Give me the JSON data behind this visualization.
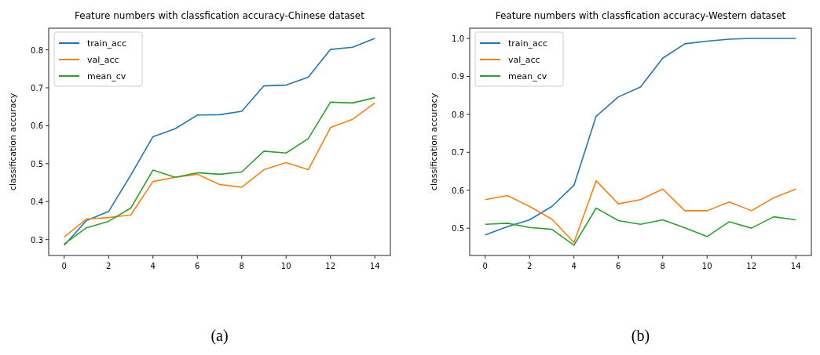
{
  "chart_data": [
    {
      "type": "line",
      "title": "Feature numbers with classfication accuracy-Chinese dataset",
      "ylabel": "classification accuracy",
      "annotations": [
        "(a)"
      ],
      "x": [
        0,
        1,
        2,
        3,
        4,
        5,
        6,
        7,
        8,
        9,
        10,
        11,
        12,
        13,
        14
      ],
      "xlim": [
        -0.7,
        14.7
      ],
      "xticks": [
        0,
        2,
        4,
        6,
        8,
        10,
        12,
        14
      ],
      "ylim": [
        0.258,
        0.857
      ],
      "yticks": [
        {
          "value": 0.3,
          "label": "0.3"
        },
        {
          "value": 0.4,
          "label": "0.4"
        },
        {
          "value": 0.5,
          "label": "0.5"
        },
        {
          "value": 0.6,
          "label": "0.6"
        },
        {
          "value": 0.7,
          "label": "0.7"
        },
        {
          "value": 0.8,
          "label": "0.8"
        }
      ],
      "legend": "top left",
      "grid": false,
      "series": [
        {
          "name": "train_acc",
          "color": "#1f77b4",
          "values": [
            0.285,
            0.35,
            0.374,
            0.47,
            0.571,
            0.592,
            0.628,
            0.629,
            0.638,
            0.705,
            0.707,
            0.728,
            0.801,
            0.807,
            0.83
          ]
        },
        {
          "name": "val_acc",
          "color": "#ff7f0e",
          "values": [
            0.307,
            0.354,
            0.358,
            0.365,
            0.453,
            0.464,
            0.472,
            0.445,
            0.438,
            0.484,
            0.503,
            0.484,
            0.595,
            0.617,
            0.66
          ]
        },
        {
          "name": "mean_cv",
          "color": "#2ca02c",
          "values": [
            0.288,
            0.331,
            0.348,
            0.383,
            0.483,
            0.464,
            0.476,
            0.472,
            0.478,
            0.533,
            0.528,
            0.566,
            0.662,
            0.66,
            0.674
          ]
        }
      ]
    },
    {
      "type": "line",
      "title": "Feature numbers with classfication accuracy-Western dataset",
      "ylabel": "classification accuracy",
      "annotations": [
        "(b)"
      ],
      "x": [
        0,
        1,
        2,
        3,
        4,
        5,
        6,
        7,
        8,
        9,
        10,
        11,
        12,
        13,
        14
      ],
      "xlim": [
        -0.7,
        14.7
      ],
      "xticks": [
        0,
        2,
        4,
        6,
        8,
        10,
        12,
        14
      ],
      "ylim": [
        0.428,
        1.027
      ],
      "yticks": [
        {
          "value": 0.5,
          "label": "0.5"
        },
        {
          "value": 0.6,
          "label": "0.6"
        },
        {
          "value": 0.7,
          "label": "0.7"
        },
        {
          "value": 0.8,
          "label": "0.8"
        },
        {
          "value": 0.9,
          "label": "0.9"
        },
        {
          "value": 1.0,
          "label": "1.0"
        }
      ],
      "legend": "top left",
      "grid": false,
      "series": [
        {
          "name": "train_acc",
          "color": "#1f77b4",
          "values": [
            0.482,
            0.504,
            0.522,
            0.557,
            0.613,
            0.795,
            0.846,
            0.872,
            0.948,
            0.986,
            0.993,
            0.998,
            1.0,
            1.0,
            1.0
          ]
        },
        {
          "name": "val_acc",
          "color": "#ff7f0e",
          "values": [
            0.575,
            0.586,
            0.557,
            0.524,
            0.462,
            0.625,
            0.564,
            0.575,
            0.603,
            0.546,
            0.546,
            0.569,
            0.546,
            0.58,
            0.603
          ]
        },
        {
          "name": "mean_cv",
          "color": "#2ca02c",
          "values": [
            0.51,
            0.513,
            0.502,
            0.497,
            0.455,
            0.553,
            0.52,
            0.51,
            0.522,
            0.501,
            0.478,
            0.517,
            0.5,
            0.53,
            0.522
          ]
        }
      ]
    }
  ]
}
